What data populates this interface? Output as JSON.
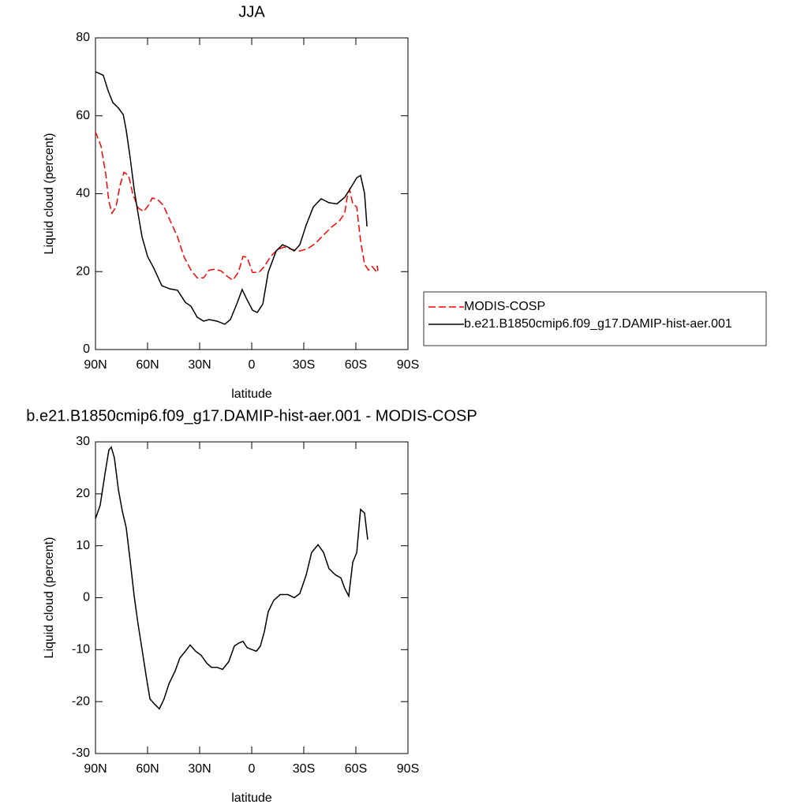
{
  "chart_data": [
    {
      "type": "line",
      "title": "JJA",
      "xlabel": "latitude",
      "ylabel": "Liquid cloud (percent)",
      "xlim": [
        90,
        -90
      ],
      "ylim": [
        0,
        80
      ],
      "xticks": [
        {
          "value": 90,
          "label": "90N"
        },
        {
          "value": 60,
          "label": "60N"
        },
        {
          "value": 30,
          "label": "30N"
        },
        0,
        {
          "value": -30,
          "label": "30S"
        },
        {
          "value": -60,
          "label": "60S"
        },
        {
          "value": -90,
          "label": "90S"
        }
      ],
      "yticks": [
        0,
        20,
        40,
        60,
        80
      ],
      "legend": "right",
      "series": [
        {
          "name": "MODIS-COSP",
          "color": "#ff0000",
          "line_style": "dashed",
          "x": [
            90,
            86.8,
            84.1,
            82.3,
            80.5,
            78.2,
            75.9,
            73.6,
            70.9,
            68.6,
            65.5,
            62.3,
            59.5,
            57.3,
            54.1,
            50.9,
            47.3,
            42.7,
            39.1,
            35,
            31.4,
            27.7,
            24.5,
            21.4,
            17.7,
            14.1,
            10.9,
            7.7,
            5,
            2.7,
            -0.5,
            -4.1,
            -7.3,
            -10.9,
            -15,
            -18.6,
            -23.2,
            -27.7,
            -32.3,
            -36.8,
            -41.4,
            -45.9,
            -50.5,
            -53.6,
            -55,
            -56.4,
            -58.2,
            -60.5,
            -62.7,
            -65,
            -67.3,
            -69.5,
            -71.4,
            -72.3,
            -72.7
          ],
          "values": [
            55.9,
            52.2,
            45.1,
            38.1,
            35,
            36.6,
            42.1,
            45.5,
            44.7,
            40.1,
            36.4,
            35.4,
            37,
            38.9,
            38.5,
            37,
            33.4,
            28.9,
            23.9,
            20.4,
            18.4,
            18.4,
            20.4,
            20.6,
            20.2,
            18.8,
            17.8,
            19.8,
            23.9,
            23.7,
            19.8,
            19.8,
            21.3,
            23.9,
            25.7,
            26.3,
            25.7,
            25.3,
            25.9,
            27.3,
            29.4,
            31.4,
            33,
            35,
            39.1,
            41.1,
            37.4,
            36.6,
            27.9,
            21.9,
            20.4,
            21.3,
            20.2,
            21.5,
            20.2
          ]
        },
        {
          "name": "b.e21.B1850cmip6.f09_g17.DAMIP-hist-aer.001",
          "color": "#000000",
          "line_style": "solid",
          "x": [
            90,
            85.5,
            82.7,
            80,
            76.8,
            74,
            72.3,
            70,
            67.7,
            65.5,
            63.2,
            60,
            56.4,
            51.8,
            47.3,
            42.7,
            38.2,
            35,
            31.4,
            27.7,
            24.5,
            20,
            15.5,
            12.3,
            8.6,
            5.5,
            2.7,
            -0.5,
            -3.2,
            -6.4,
            -9.5,
            -14.1,
            -17.7,
            -20.9,
            -24.5,
            -27.7,
            -31.4,
            -35.5,
            -40,
            -44.5,
            -49.1,
            -53.6,
            -57.3,
            -60.5,
            -62.7,
            -65,
            -66.4
          ],
          "values": [
            71.3,
            70.4,
            66.4,
            63.4,
            62,
            60.3,
            56.3,
            49.2,
            41.1,
            35,
            29,
            23.9,
            20.9,
            16.4,
            15.6,
            15.2,
            12.1,
            11.1,
            8.3,
            7.3,
            7.7,
            7.3,
            6.5,
            7.7,
            11.7,
            15.4,
            12.8,
            10.1,
            9.5,
            11.7,
            19.8,
            25.3,
            26.9,
            26.3,
            25.3,
            26.9,
            32,
            36.6,
            38.7,
            37.7,
            37.4,
            39.1,
            41.7,
            44.1,
            44.7,
            40.1,
            31.6
          ]
        }
      ]
    },
    {
      "type": "line",
      "title": "b.e21.B1850cmip6.f09_g17.DAMIP-hist-aer.001 - MODIS-COSP",
      "xlabel": "latitude",
      "ylabel": "Liquid cloud (percent)",
      "xlim": [
        90,
        -90
      ],
      "ylim": [
        -30,
        30
      ],
      "xticks": [
        {
          "value": 90,
          "label": "90N"
        },
        {
          "value": 60,
          "label": "60N"
        },
        {
          "value": 30,
          "label": "30N"
        },
        0,
        {
          "value": -30,
          "label": "30S"
        },
        {
          "value": -60,
          "label": "60S"
        },
        {
          "value": -90,
          "label": "90S"
        }
      ],
      "yticks": [
        -30,
        -20,
        -10,
        0,
        10,
        20,
        30
      ],
      "series": [
        {
          "color": "#000000",
          "line_style": "solid",
          "x": [
            90,
            87.3,
            84.5,
            82.3,
            80.9,
            79.1,
            76.8,
            74.5,
            72.3,
            70,
            67.7,
            65.5,
            63.2,
            60.5,
            58.6,
            55.9,
            53.2,
            50.5,
            47.7,
            44.1,
            41.4,
            38.2,
            35.5,
            32.3,
            29.1,
            25.9,
            23.2,
            20,
            16.8,
            13.2,
            10,
            7.3,
            5,
            2.7,
            0.5,
            -2.7,
            -5,
            -7.3,
            -9.5,
            -12.7,
            -16.4,
            -20.9,
            -24.5,
            -27.7,
            -31.4,
            -34.5,
            -38.2,
            -41.4,
            -44.5,
            -48.2,
            -51.4,
            -53.6,
            -55.9,
            -58.2,
            -60.5,
            -62.7,
            -65,
            -66.8
          ],
          "values": [
            15.2,
            17.8,
            23.9,
            28.4,
            29,
            26.9,
            20.8,
            16.6,
            13.5,
            7.1,
            0.3,
            -5,
            -9.9,
            -15.7,
            -19.5,
            -20.5,
            -21.4,
            -19.5,
            -16.6,
            -14.1,
            -11.6,
            -10.3,
            -9.1,
            -10.3,
            -11.1,
            -12.6,
            -13.4,
            -13.4,
            -13.8,
            -12.3,
            -9.3,
            -8.7,
            -8.4,
            -9.6,
            -9.9,
            -10.3,
            -9.3,
            -6.5,
            -2.7,
            -0.5,
            0.6,
            0.6,
            0,
            0.8,
            4.4,
            8.7,
            10.2,
            8.7,
            5.6,
            4.4,
            3.8,
            1.8,
            0.3,
            6.8,
            8.7,
            17,
            16.3,
            11.2
          ]
        }
      ]
    }
  ]
}
